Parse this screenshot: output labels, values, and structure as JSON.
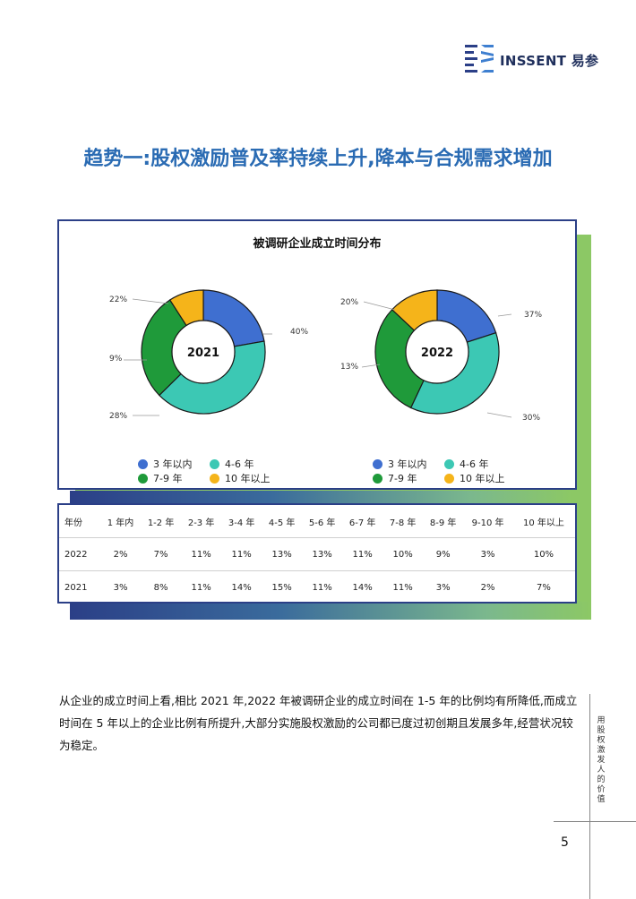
{
  "header": {
    "brand": "INSSENT 易参"
  },
  "headline": "趋势一:股权激励普及率持续上升,降本与合规需求增加",
  "chart": {
    "title": "被调研企业成立时间分布",
    "colors": {
      "3年以内": "#3f6fd0",
      "4-6年": "#3cc8b4",
      "7-9年": "#1f9a3a",
      "10年以上": "#f5b41a"
    }
  },
  "chart_data": [
    {
      "type": "pie",
      "title": "2021",
      "categories": [
        "3 年以内",
        "4-6 年",
        "7-9 年",
        "10 年以上"
      ],
      "values": [
        22,
        40,
        28,
        9
      ],
      "labels": [
        "22%",
        "40%",
        "28%",
        "9%"
      ]
    },
    {
      "type": "pie",
      "title": "2022",
      "categories": [
        "3 年以内",
        "4-6 年",
        "7-9 年",
        "10 年以上"
      ],
      "values": [
        20,
        37,
        30,
        13
      ],
      "labels": [
        "20%",
        "37%",
        "30%",
        "13%"
      ]
    }
  ],
  "legend": [
    {
      "label": "3 年以内",
      "color": "#3f6fd0"
    },
    {
      "label": "4-6 年",
      "color": "#3cc8b4"
    },
    {
      "label": "7-9 年",
      "color": "#1f9a3a"
    },
    {
      "label": "10 年以上",
      "color": "#f5b41a"
    }
  ],
  "table": {
    "header": [
      "年份",
      "1 年内",
      "1-2 年",
      "2-3 年",
      "3-4 年",
      "4-5 年",
      "5-6 年",
      "6-7 年",
      "7-8 年",
      "8-9 年",
      "9-10 年",
      "10 年以上"
    ],
    "rows": [
      [
        "2022",
        "2%",
        "7%",
        "11%",
        "11%",
        "13%",
        "13%",
        "11%",
        "10%",
        "9%",
        "3%",
        "10%"
      ],
      [
        "2021",
        "3%",
        "8%",
        "11%",
        "14%",
        "15%",
        "11%",
        "14%",
        "11%",
        "3%",
        "2%",
        "7%"
      ]
    ]
  },
  "paragraph": "从企业的成立时间上看,相比 2021 年,2022 年被调研企业的成立时间在 1-5 年的比例均有所降低,而成立时间在 5 年以上的企业比例有所提升,大部分实施股权激励的公司都已度过初创期且发展多年,经营状况较为稳定。",
  "side_slogan": "用股权激发人的价值",
  "page_number": "5"
}
